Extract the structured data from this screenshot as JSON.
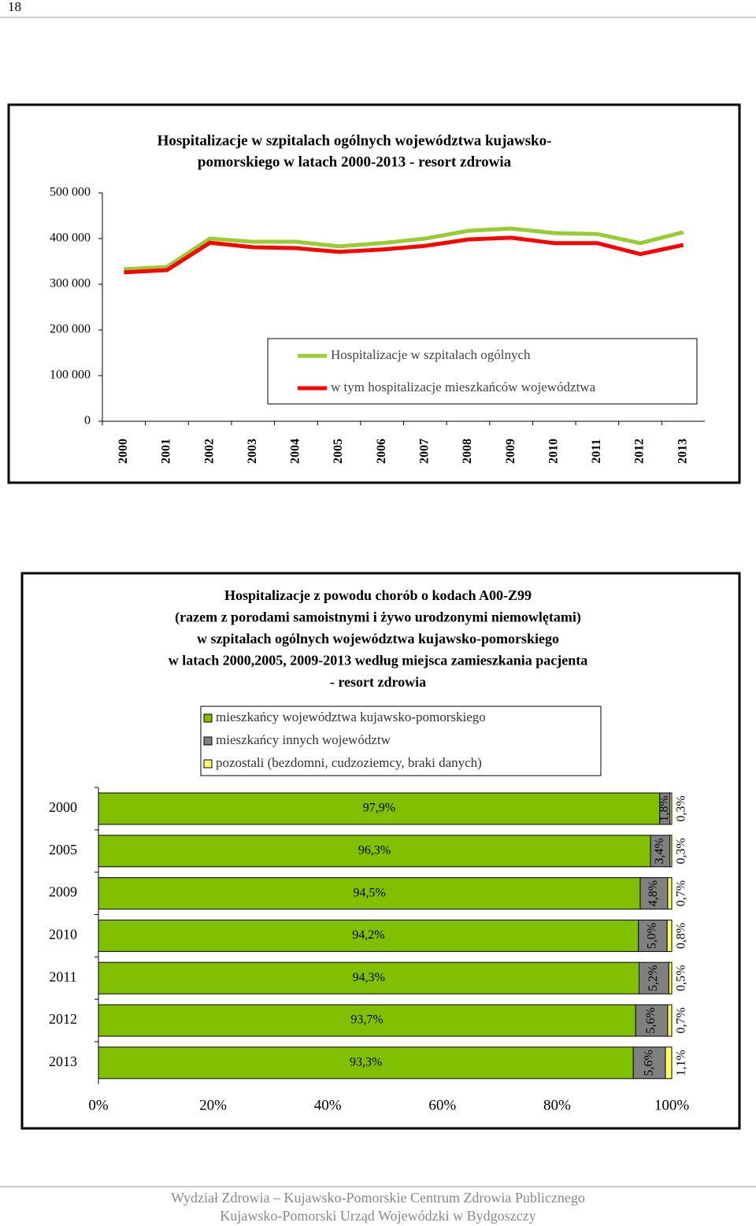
{
  "page_number": "18",
  "chart_data": [
    {
      "type": "line",
      "title": [
        "Hospitalizacje w szpitalach ogólnych województwa kujawsko-",
        "pomorskiego w latach 2000-2013 - resort zdrowia"
      ],
      "categories": [
        "2000",
        "2001",
        "2002",
        "2003",
        "2004",
        "2005",
        "2006",
        "2007",
        "2008",
        "2009",
        "2010",
        "2011",
        "2012",
        "2013"
      ],
      "series": [
        {
          "name": "Hospitalizacje w szpitalach ogólnych",
          "color": "#99cc33",
          "values": [
            333000,
            338000,
            400000,
            393000,
            393000,
            383000,
            390000,
            400000,
            417000,
            422000,
            412000,
            410000,
            390000,
            414000
          ]
        },
        {
          "name": "w tym hospitalizacje mieszkańców województwa",
          "color": "#ff0000",
          "values": [
            326000,
            331000,
            391000,
            381000,
            379000,
            371000,
            376000,
            384000,
            398000,
            402000,
            390000,
            390000,
            366000,
            386000
          ]
        }
      ],
      "ylim": [
        0,
        500000
      ],
      "yticks": [
        0,
        {
          "value": 100000,
          "label": "100 000"
        },
        {
          "value": 200000,
          "label": "200 000"
        },
        {
          "value": 300000,
          "label": "300 000"
        },
        {
          "value": 400000,
          "label": "400 000"
        },
        {
          "value": 500000,
          "label": "500 000"
        }
      ],
      "grid": false
    },
    {
      "type": "stacked-bar-horizontal",
      "title": [
        "Hospitalizacje z powodu chorób o kodach A00-Z99",
        "(razem z porodami samoistnymi i żywo urodzonymi niemowlętami)",
        "w szpitalach ogólnych województwa kujawsko-pomorskiego",
        "w latach 2000,2005, 2009-2013 według miejsca zamieszkania pacjenta",
        "- resort zdrowia"
      ],
      "categories": [
        "2000",
        "2005",
        "2009",
        "2010",
        "2011",
        "2012",
        "2013"
      ],
      "series": [
        {
          "name": "mieszkańcy województwa kujawsko-pomorskiego",
          "color": "#80c000",
          "values": [
            97.9,
            96.3,
            94.5,
            94.2,
            94.3,
            93.7,
            93.3
          ],
          "value_labels": [
            "97,9%",
            "96,3%",
            "94,5%",
            "94,2%",
            "94,3%",
            "93,7%",
            "93,3%"
          ]
        },
        {
          "name": "mieszkańcy innych województw",
          "color": "#808080",
          "values": [
            1.8,
            3.4,
            4.8,
            5.0,
            5.2,
            5.6,
            5.6
          ],
          "value_labels": [
            "1,8%",
            "3,4%",
            "4,8%",
            "5,0%",
            "5,2%",
            "5,6%",
            "5,6%"
          ]
        },
        {
          "name": "pozostali (bezdomni, cudzoziemcy, braki danych)",
          "color": "#ffff66",
          "values": [
            0.3,
            0.3,
            0.7,
            0.8,
            0.5,
            0.7,
            1.1
          ],
          "value_labels": [
            "0,3%",
            "0,3%",
            "0,7%",
            "0,8%",
            "0,5%",
            "0,7%",
            "1,1%"
          ]
        }
      ],
      "xlim": [
        0,
        100
      ],
      "xticks": [
        {
          "value": 0,
          "label": "0%"
        },
        {
          "value": 20,
          "label": "20%"
        },
        {
          "value": 40,
          "label": "40%"
        },
        {
          "value": 60,
          "label": "60%"
        },
        {
          "value": 80,
          "label": "80%"
        },
        {
          "value": 100,
          "label": "100%"
        }
      ]
    }
  ],
  "footer": [
    "Wydział Zdrowia – Kujawsko-Pomorskie Centrum Zdrowia Publicznego",
    "Kujawsko-Pomorski Urząd Wojewódzki w Bydgoszczy"
  ]
}
